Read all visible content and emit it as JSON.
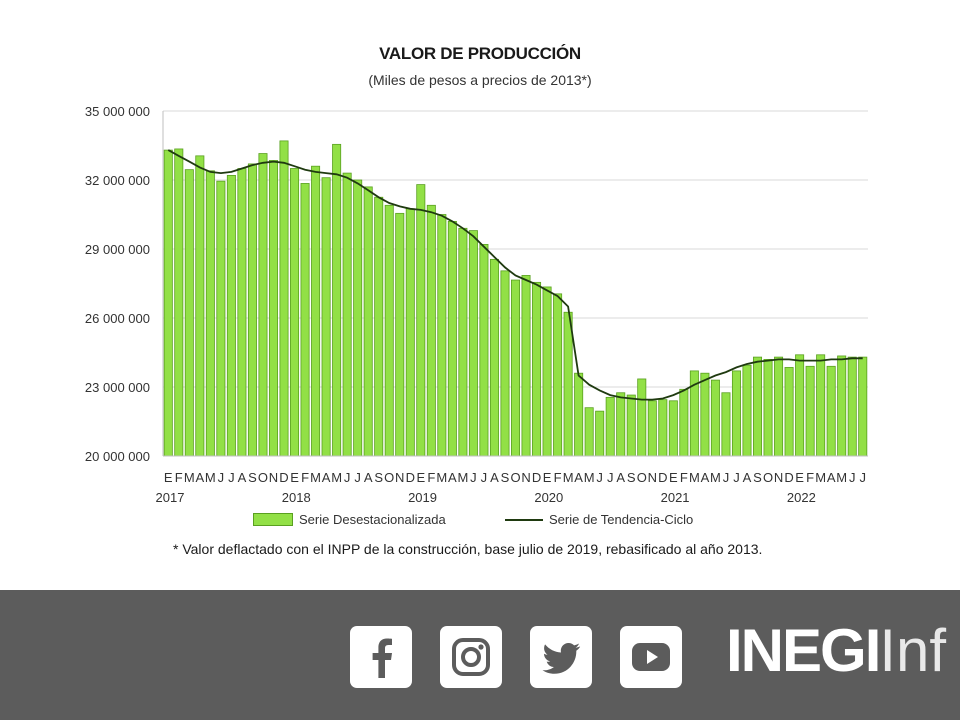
{
  "chart_data": {
    "type": "bar",
    "title": "VALOR DE PRODUCCIÓN",
    "subtitle": "(Miles de pesos a precios de 2013*)",
    "ylim": [
      20000000,
      35000000
    ],
    "yticks": [
      "35 000 000",
      "32 000 000",
      "29 000 000",
      "26 000 000",
      "23 000 000",
      "20 000 000"
    ],
    "ytick_values": [
      35000000,
      32000000,
      29000000,
      26000000,
      23000000,
      20000000
    ],
    "grid": true,
    "month_letters": [
      "E",
      "F",
      "M",
      "A",
      "M",
      "J",
      "J",
      "A",
      "S",
      "O",
      "N",
      "D",
      "E",
      "F",
      "M",
      "A",
      "M",
      "J",
      "J",
      "A",
      "S",
      "O",
      "N",
      "D",
      "E",
      "F",
      "M",
      "A",
      "M",
      "J",
      "J",
      "A",
      "S",
      "O",
      "N",
      "D",
      "E",
      "F",
      "M",
      "A",
      "M",
      "J",
      "J",
      "A",
      "S",
      "O",
      "N",
      "D",
      "E",
      "F",
      "M",
      "A",
      "M",
      "J",
      "J",
      "A",
      "S",
      "O",
      "N",
      "D",
      "E",
      "F",
      "M",
      "A",
      "M",
      "J",
      "J"
    ],
    "years": [
      {
        "label": "2017",
        "start_index": 0
      },
      {
        "label": "2018",
        "start_index": 12
      },
      {
        "label": "2019",
        "start_index": 24
      },
      {
        "label": "2020",
        "start_index": 36
      },
      {
        "label": "2021",
        "start_index": 48
      },
      {
        "label": "2022",
        "start_index": 60
      }
    ],
    "series": [
      {
        "name": "Serie Desestacionalizada",
        "kind": "bar",
        "color": "#92e046",
        "values": [
          33300000,
          33350000,
          32450000,
          33050000,
          32400000,
          31950000,
          32200000,
          32500000,
          32700000,
          33150000,
          32850000,
          33700000,
          32500000,
          31850000,
          32600000,
          32100000,
          33550000,
          32300000,
          32000000,
          31700000,
          31250000,
          30900000,
          30550000,
          30750000,
          31800000,
          30900000,
          30500000,
          30200000,
          29900000,
          29800000,
          29200000,
          28550000,
          28050000,
          27650000,
          27850000,
          27550000,
          27350000,
          27050000,
          26250000,
          23600000,
          22100000,
          21950000,
          22550000,
          22750000,
          22650000,
          23350000,
          22400000,
          22450000,
          22400000,
          22900000,
          23700000,
          23600000,
          23300000,
          22750000,
          23700000,
          23950000,
          24300000,
          24200000,
          24300000,
          23850000,
          24400000,
          23900000,
          24400000,
          23900000,
          24350000,
          24300000,
          24300000
        ]
      },
      {
        "name": "Serie de Tendencia-Ciclo",
        "kind": "line",
        "color": "#1f3a10",
        "values": [
          33300000,
          33050000,
          32800000,
          32550000,
          32350000,
          32300000,
          32350000,
          32500000,
          32650000,
          32750000,
          32800000,
          32750000,
          32600000,
          32450000,
          32350000,
          32300000,
          32250000,
          32100000,
          31850000,
          31550000,
          31250000,
          31000000,
          30850000,
          30750000,
          30700000,
          30600000,
          30450000,
          30200000,
          29900000,
          29550000,
          29100000,
          28650000,
          28200000,
          27850000,
          27650000,
          27450000,
          27200000,
          26950000,
          26500000,
          23500000,
          23100000,
          22850000,
          22650000,
          22550000,
          22500000,
          22450000,
          22450000,
          22500000,
          22650000,
          22850000,
          23100000,
          23300000,
          23500000,
          23650000,
          23850000,
          24000000,
          24100000,
          24150000,
          24200000,
          24200000,
          24150000,
          24150000,
          24150000,
          24200000,
          24200000,
          24250000,
          24250000
        ]
      }
    ],
    "legend_position": "bottom",
    "footnote": "* Valor deflactado con el INPP de la construcción, base julio de 2019, rebasificado al año 2013."
  },
  "footer": {
    "background": "#5c5c5c",
    "icons": [
      "facebook-icon",
      "instagram-icon",
      "twitter-icon",
      "youtube-icon"
    ],
    "brand_bold": "INEGI",
    "brand_light": "Inf"
  }
}
